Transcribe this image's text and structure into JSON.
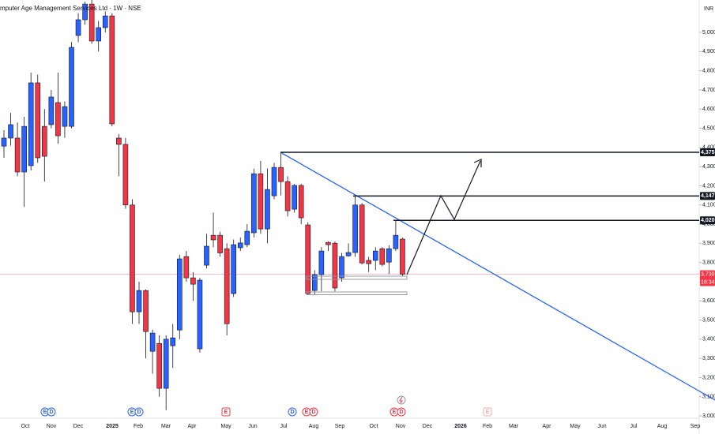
{
  "chart_data": {
    "type": "candlestick",
    "title": "mputer Age Management Services Ltd · 1W · NSE",
    "currency": "INR",
    "up_color": "#2962ff",
    "down_color": "#f23645",
    "ylim": [
      2988,
      5169
    ],
    "yticks": [
      {
        "value": 3000,
        "label": "3,000"
      },
      {
        "value": 3100,
        "label": "3,100"
      },
      {
        "value": 3200,
        "label": "3,200"
      },
      {
        "value": 3300,
        "label": "3,300"
      },
      {
        "value": 3400,
        "label": "3,400"
      },
      {
        "value": 3500,
        "label": "3,500"
      },
      {
        "value": 3600,
        "label": "3,600"
      },
      {
        "value": 3700,
        "label": "3,700"
      },
      {
        "value": 3800,
        "label": "3,800"
      },
      {
        "value": 3900,
        "label": "3,900"
      },
      {
        "value": 4000,
        "label": "4,000"
      },
      {
        "value": 4100,
        "label": "4,100"
      },
      {
        "value": 4200,
        "label": "4,200"
      },
      {
        "value": 4300,
        "label": "4,300"
      },
      {
        "value": 4400,
        "label": "4,400"
      },
      {
        "value": 4500,
        "label": "4,500"
      },
      {
        "value": 4600,
        "label": "4,600"
      },
      {
        "value": 4700,
        "label": "4,700"
      },
      {
        "value": 4800,
        "label": "4,800"
      },
      {
        "value": 4900,
        "label": "4,900"
      },
      {
        "value": 5000,
        "label": "5,000"
      }
    ],
    "xtick_labels": [
      "Oct",
      "Nov",
      "Dec",
      "2025",
      "Feb",
      "Mar",
      "Apr",
      "May",
      "Jun",
      "Jul",
      "Aug",
      "Sep",
      "Oct",
      "Nov",
      "Dec",
      "2026",
      "Feb",
      "Mar",
      "Apr",
      "May",
      "Jun",
      "Jul",
      "Aug",
      "Sep"
    ],
    "open": [
      4407,
      4449,
      4449,
      4272,
      4305,
      4737,
      4510,
      4519,
      4634,
      4510,
      4510,
      4984,
      5066,
      5148,
      4955,
      5025,
      5086,
      4449,
      4416,
      4100,
      3543,
      3654,
      3337,
      3378,
      3144,
      3366,
      3448,
      3831,
      3720,
      3350,
      3786,
      3942,
      3942,
      3872,
      3638,
      3877,
      3893,
      3955,
      4263,
      3975,
      4148,
      4296,
      4222,
      4078,
      4202,
      3996,
      3654,
      3737,
      3905,
      3901,
      3720,
      3835,
      3852,
      4100,
      3811,
      3811,
      3872,
      3802,
      3872,
      3922
    ],
    "high": [
      4490,
      4580,
      4530,
      4560,
      4790,
      4780,
      4600,
      4700,
      4790,
      4640,
      4950,
      5100,
      5160,
      5180,
      5060,
      5110,
      5100,
      4470,
      4450,
      4130,
      3700,
      3660,
      3450,
      3420,
      3420,
      3480,
      3840,
      3860,
      3750,
      3720,
      3950,
      4060,
      3960,
      3900,
      3920,
      3930,
      4000,
      4290,
      4330,
      4290,
      4320,
      4375,
      4250,
      4210,
      4210,
      4010,
      3760,
      3880,
      3910,
      3910,
      3850,
      3900,
      4147,
      4110,
      3830,
      3880,
      3880,
      3890,
      4020,
      3930
    ],
    "low": [
      4346,
      4410,
      4250,
      4090,
      4280,
      4320,
      4222,
      4500,
      4420,
      4450,
      4500,
      4950,
      5040,
      4940,
      4900,
      5000,
      4510,
      4250,
      4080,
      3480,
      3480,
      3300,
      3220,
      3100,
      3030,
      3250,
      3400,
      3700,
      3600,
      3330,
      3770,
      3880,
      3830,
      3420,
      3620,
      3860,
      3880,
      3930,
      3950,
      3900,
      4130,
      4150,
      4040,
      4060,
      4000,
      3630,
      3630,
      3650,
      3860,
      3650,
      3700,
      3830,
      3830,
      3790,
      3750,
      3760,
      3780,
      3740,
      3860,
      3730
    ],
    "close": [
      4449,
      4519,
      4272,
      4510,
      4737,
      4346,
      4354,
      4663,
      4461,
      4613,
      4922,
      5066,
      5148,
      4955,
      5025,
      5086,
      4523,
      4416,
      4100,
      3543,
      3654,
      3440,
      3432,
      3144,
      3400,
      3407,
      3819,
      3720,
      3687,
      3708,
      3885,
      3918,
      3850,
      3481,
      3893,
      3902,
      3963,
      4263,
      3975,
      4181,
      4296,
      4222,
      4070,
      4202,
      4033,
      3638,
      3737,
      3860,
      3893,
      3667,
      3831,
      3852,
      4100,
      3798,
      3794,
      3860,
      3790,
      3872,
      3942,
      3739
    ],
    "levels": [
      {
        "value": 4375,
        "label": "4,375"
      },
      {
        "value": 4147,
        "label": "4,147"
      },
      {
        "value": 4020,
        "label": "4,020"
      }
    ],
    "last_price": {
      "value": 3739,
      "label": "3,739"
    },
    "countdown": "18:34",
    "events": [
      "E",
      "D",
      "E",
      "D",
      "E",
      "D",
      "E",
      "D",
      "E",
      "D",
      "E"
    ]
  }
}
